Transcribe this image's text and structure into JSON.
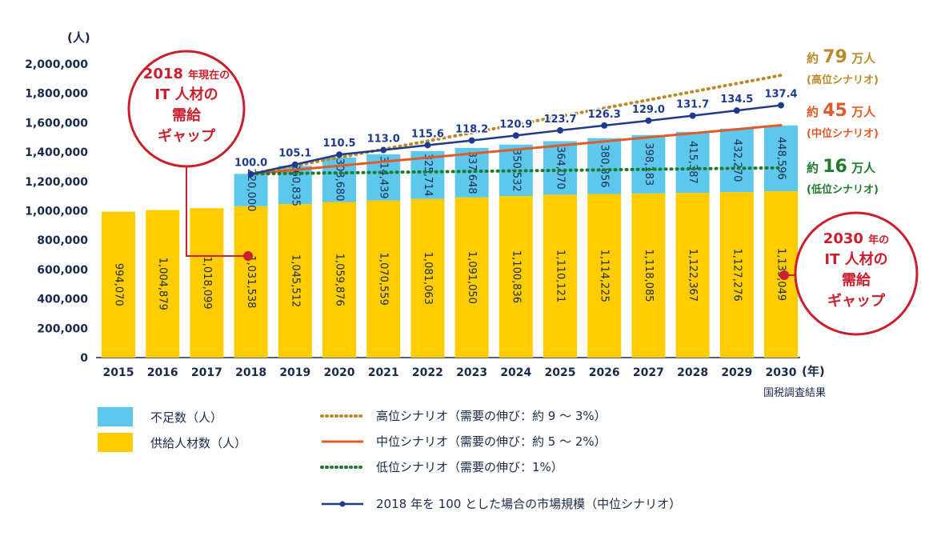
{
  "chart_data": {
    "type": "bar",
    "y_unit_label": "(人)",
    "x_unit_label": "(年)",
    "source": "国税調査結果",
    "ylim": [
      0,
      2000000
    ],
    "y_ticks": [
      "0",
      "200,000",
      "400,000",
      "600,000",
      "800,000",
      "1,000,000",
      "1,200,000",
      "1,400,000",
      "1,600,000",
      "1,800,000",
      "2,000,000"
    ],
    "categories": [
      "2015",
      "2016",
      "2017",
      "2018",
      "2019",
      "2020",
      "2021",
      "2022",
      "2023",
      "2024",
      "2025",
      "2026",
      "2027",
      "2028",
      "2029",
      "2030"
    ],
    "supply": {
      "name": "供給人材数（人）",
      "color": "#ffcc00",
      "values": [
        994070,
        1004879,
        1018099,
        1031538,
        1045512,
        1059876,
        1070559,
        1081063,
        1091050,
        1100836,
        1110121,
        1114225,
        1118085,
        1122367,
        1127276,
        1133049
      ],
      "labels": [
        "994,070",
        "1,004,879",
        "1,018,099",
        "1,031,538",
        "1,045,512",
        "1,059,876",
        "1,070,559",
        "1,081,063",
        "1,091,050",
        "1,100,836",
        "1,110,121",
        "1,114,225",
        "1,118,085",
        "1,122,367",
        "1,127,276",
        "1,133,049"
      ]
    },
    "shortage": {
      "name": "不足数（人）",
      "color": "#5dc8ec",
      "start_index": 3,
      "values": [
        220000,
        260835,
        303680,
        314439,
        325714,
        337648,
        350532,
        364070,
        380856,
        398183,
        415387,
        432270,
        448596
      ],
      "labels": [
        "220,000",
        "260,835",
        "303,680",
        "314,439",
        "325,714",
        "337,648",
        "350,532",
        "364,070",
        "380,856",
        "398,183",
        "415,387",
        "432,270",
        "448,596"
      ]
    },
    "scenarios": [
      {
        "name": "高位シナリオ（需要の伸び：約 9 ～ 3%）",
        "color": "#b88a2c",
        "style": "dotted",
        "from": [
          2018,
          1251538
        ],
        "to": [
          2030,
          1923000
        ]
      },
      {
        "name": "中位シナリオ（需要の伸び：約 5 ～ 2%）",
        "color": "#e05a2a",
        "style": "solid",
        "from": [
          2018,
          1251538
        ],
        "to": [
          2030,
          1583000
        ]
      },
      {
        "name": "低位シナリオ（需要の伸び：1%）",
        "color": "#1f7a2e",
        "style": "dotted",
        "from": [
          2018,
          1251538
        ],
        "to": [
          2030,
          1293000
        ]
      }
    ],
    "market": {
      "name": "2018 年を 100 とした場合の市場規模（中位シナリオ）",
      "color": "#1f3a8a",
      "categories": [
        "2018",
        "2019",
        "2020",
        "2021",
        "2022",
        "2023",
        "2024",
        "2025",
        "2026",
        "2027",
        "2028",
        "2029",
        "2030"
      ],
      "labels": [
        "100.0",
        "105.1",
        "110.5",
        "113.0",
        "115.6",
        "118.2",
        "120.9",
        "123.7",
        "126.3",
        "129.0",
        "131.7",
        "134.5",
        "137.4"
      ],
      "y_values": [
        1250000,
        1315000,
        1383000,
        1414000,
        1447000,
        1479000,
        1513000,
        1548000,
        1581000,
        1614000,
        1648000,
        1683000,
        1719000
      ]
    },
    "right_labels": [
      {
        "prefix": "約",
        "num": "79",
        "suffix": "万人",
        "sub": "(高位シナリオ)",
        "color": "#b88a2c"
      },
      {
        "prefix": "約",
        "num": "45",
        "suffix": "万人",
        "sub": "(中位シナリオ)",
        "color": "#e05a2a"
      },
      {
        "prefix": "約",
        "num": "16",
        "suffix": "万人",
        "sub": "(低位シナリオ)",
        "color": "#1f7a2e"
      }
    ],
    "callouts": [
      {
        "lines": [
          [
            "2018 ",
            "年現在の"
          ],
          [
            "IT 人材の",
            ""
          ],
          [
            "需給",
            ""
          ],
          [
            "ギャップ",
            ""
          ]
        ],
        "color": "#c8202e"
      },
      {
        "lines": [
          [
            "2030 ",
            "年の"
          ],
          [
            "IT 人材の",
            ""
          ],
          [
            "需給",
            ""
          ],
          [
            "ギャップ",
            ""
          ]
        ],
        "color": "#c8202e"
      }
    ]
  }
}
